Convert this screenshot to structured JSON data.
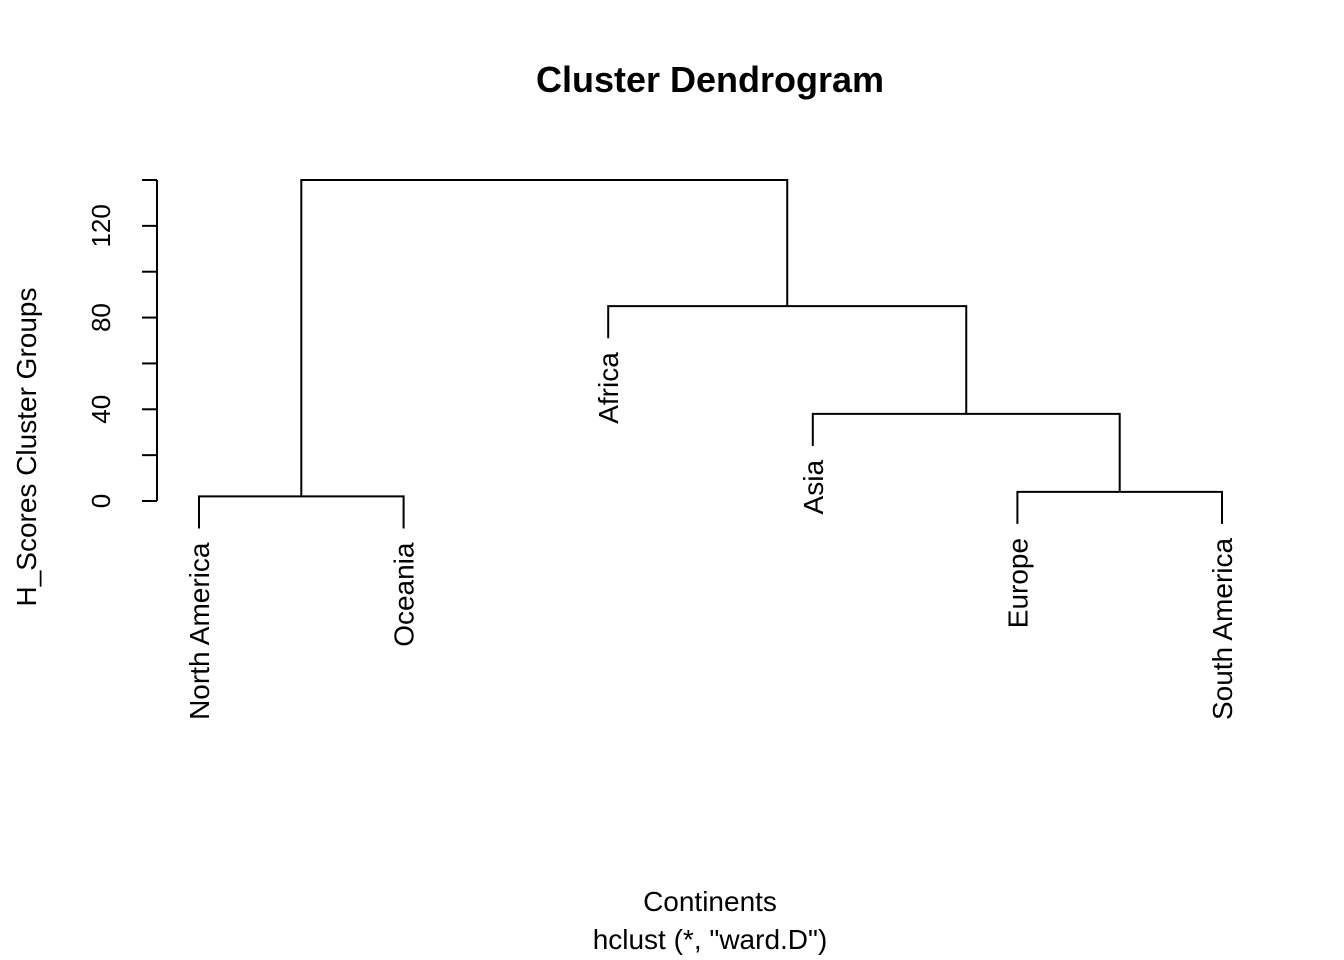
{
  "chart_data": {
    "type": "dendrogram",
    "title": "Cluster Dendrogram",
    "xlabel": "Continents",
    "sub": "hclust (*, \"ward.D\")",
    "ylabel": "H_Scores Cluster Groups",
    "ylim": [
      0,
      140
    ],
    "yticks": [
      0,
      20,
      40,
      60,
      80,
      100,
      120,
      140
    ],
    "ytick_labels": [
      "0",
      "40",
      "80",
      "120"
    ],
    "labels_order": [
      "North America",
      "Oceania",
      "Africa",
      "Asia",
      "Europe",
      "South America"
    ],
    "merges": [
      {
        "left": "North America",
        "right": "Oceania",
        "height": 2
      },
      {
        "left": "Europe",
        "right": "South America",
        "height": 4
      },
      {
        "left": "Asia",
        "right": [
          "Europe",
          "South America"
        ],
        "height": 38
      },
      {
        "left": "Africa",
        "right": [
          "Asia",
          "Europe",
          "South America"
        ],
        "height": 85
      },
      {
        "left": [
          "North America",
          "Oceania"
        ],
        "right": [
          "Africa",
          "Asia",
          "Europe",
          "South America"
        ],
        "height": 140
      }
    ],
    "grid": false,
    "legend": "none"
  }
}
